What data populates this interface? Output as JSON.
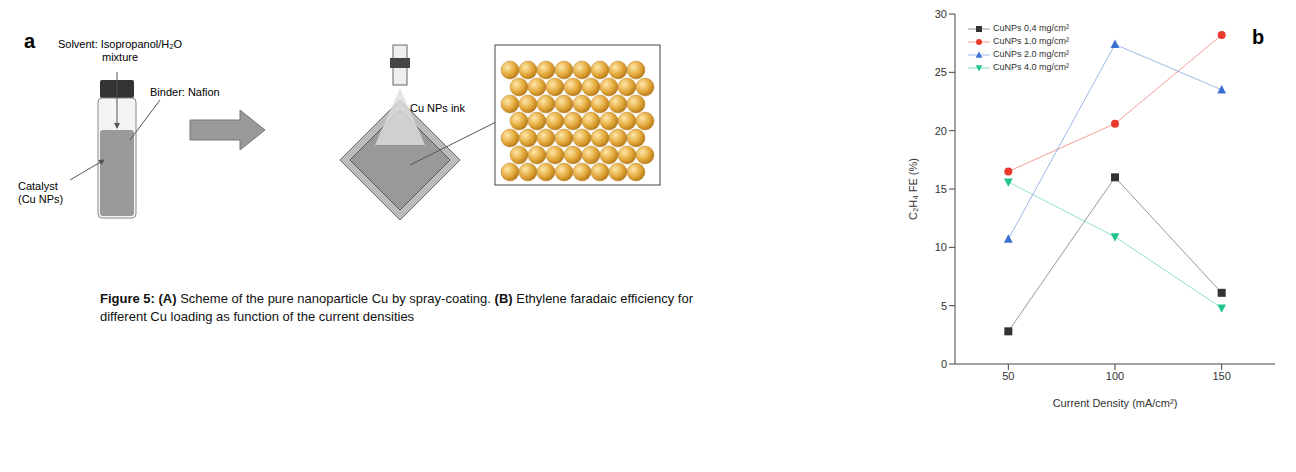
{
  "panel_a": {
    "letter": "a",
    "solvent_label": "Solvent: Isopropanol/H₂O mixture",
    "binder_label": "Binder: Nafion",
    "catalyst_label": "Catalyst (Cu NPs)",
    "ink_label": "Cu NPs ink"
  },
  "caption": {
    "label": "Figure 5:",
    "parts": [
      {
        "tag": "(A)",
        "text": "Scheme of the pure nanoparticle Cu by spray-coating."
      },
      {
        "tag": "(B)",
        "text": "Ethylene faradaic efficiency for different Cu loading as function of the current densities"
      }
    ]
  },
  "chart_data": {
    "type": "line",
    "letter": "b",
    "x_label": "Current Density (mA/cm²)",
    "y_label": "C₂H₄ FE (%)",
    "x": [
      50,
      100,
      150
    ],
    "xlim": [
      25,
      175
    ],
    "xticks": [
      50,
      100,
      150
    ],
    "ylim": [
      0,
      30
    ],
    "yticks": [
      0,
      5,
      10,
      15,
      20,
      25,
      30
    ],
    "grid": false,
    "legend": "upper left",
    "series": [
      {
        "name": "CuNPs 0,4 mg/cm²",
        "color": "#333333",
        "marker": "square",
        "values": [
          2.8,
          16.0,
          6.1
        ]
      },
      {
        "name": "CuNPs 1.0 mg/cm²",
        "color": "#e8392b",
        "marker": "circle",
        "values": [
          16.5,
          20.6,
          28.2
        ]
      },
      {
        "name": "CuNPs 2.0 mg/cm²",
        "color": "#3b6fd4",
        "marker": "triangle",
        "values": [
          10.7,
          27.4,
          23.5
        ]
      },
      {
        "name": "CuNPs 4.0 mg/cm²",
        "color": "#22c48f",
        "marker": "triangle-down",
        "values": [
          15.6,
          10.9,
          4.8
        ]
      }
    ]
  }
}
